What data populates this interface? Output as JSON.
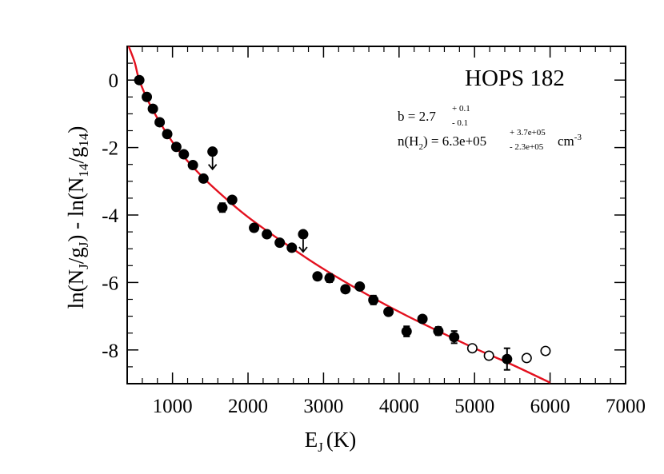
{
  "chart_data": {
    "type": "scatter",
    "title": "HOPS 182",
    "xlabel": "E",
    "xlabel_sub": "J",
    "xlabel_unit": "(K)",
    "ylabel": "ln(N",
    "ylabel_sub1": "J",
    "ylabel_mid": "/g",
    "ylabel_sub2": "J",
    "ylabel_mid2": ") - ln(N",
    "ylabel_sub3": "14",
    "ylabel_mid3": "/g",
    "ylabel_sub4": "14",
    "ylabel_end": ")",
    "xlim": [
      400,
      7000
    ],
    "ylim": [
      -9,
      1
    ],
    "x_ticks": [
      1000,
      2000,
      3000,
      4000,
      5000,
      6000,
      7000
    ],
    "y_ticks": [
      0,
      -2,
      -4,
      -6,
      -8
    ],
    "x_tick_labels": [
      "1000",
      "2000",
      "3000",
      "4000",
      "5000",
      "6000",
      "7000"
    ],
    "y_tick_labels": [
      "0",
      "-2",
      "-4",
      "-6",
      "-8"
    ],
    "grid": false,
    "annotations": {
      "b_prefix": "b = 2.7",
      "b_upper": "+ 0.1",
      "b_lower": "- 0.1",
      "n_prefix": "n(H",
      "n_sub": "2",
      "n_mid": ") =  6.3e+05",
      "n_upper": "+ 3.7e+05",
      "n_lower": "- 2.3e+05",
      "n_unit": "cm",
      "n_unit_sup": "-3"
    },
    "series": [
      {
        "kind": "filled",
        "marker_color": "#000000",
        "points": [
          {
            "x": 560,
            "y": 0.0
          },
          {
            "x": 660,
            "y": -0.5
          },
          {
            "x": 740,
            "y": -0.85
          },
          {
            "x": 830,
            "y": -1.25
          },
          {
            "x": 930,
            "y": -1.6
          },
          {
            "x": 1050,
            "y": -1.98
          },
          {
            "x": 1150,
            "y": -2.2
          },
          {
            "x": 1270,
            "y": -2.52
          },
          {
            "x": 1410,
            "y": -2.92
          },
          {
            "x": 1660,
            "y": -3.78,
            "err": 0.13
          },
          {
            "x": 1790,
            "y": -3.55
          },
          {
            "x": 2080,
            "y": -4.38
          },
          {
            "x": 2250,
            "y": -4.57
          },
          {
            "x": 2420,
            "y": -4.82
          },
          {
            "x": 2580,
            "y": -4.97
          },
          {
            "x": 2920,
            "y": -5.82
          },
          {
            "x": 3080,
            "y": -5.87,
            "err": 0.12
          },
          {
            "x": 3290,
            "y": -6.2
          },
          {
            "x": 3480,
            "y": -6.12
          },
          {
            "x": 3660,
            "y": -6.52,
            "err": 0.13
          },
          {
            "x": 3860,
            "y": -6.87
          },
          {
            "x": 4100,
            "y": -7.45,
            "err": 0.15
          },
          {
            "x": 4310,
            "y": -7.08
          },
          {
            "x": 4520,
            "y": -7.44,
            "err": 0.12
          },
          {
            "x": 4730,
            "y": -7.62,
            "err": 0.18
          },
          {
            "x": 5430,
            "y": -8.27,
            "err": 0.32
          }
        ]
      },
      {
        "kind": "upper-limit",
        "marker_color": "#000000",
        "points": [
          {
            "x": 1530,
            "y": -2.12
          },
          {
            "x": 2730,
            "y": -4.57
          }
        ]
      },
      {
        "kind": "open",
        "marker_color": "#000000",
        "points": [
          {
            "x": 4970,
            "y": -7.95
          },
          {
            "x": 5190,
            "y": -8.17
          },
          {
            "x": 5690,
            "y": -8.24
          },
          {
            "x": 5940,
            "y": -8.03
          }
        ]
      }
    ],
    "fit": {
      "color": "#e3101e",
      "points": [
        {
          "x": 420,
          "y": 1.0
        },
        {
          "x": 500,
          "y": 0.52
        },
        {
          "x": 560,
          "y": 0.0
        },
        {
          "x": 700,
          "y": -0.72
        },
        {
          "x": 900,
          "y": -1.5
        },
        {
          "x": 1100,
          "y": -2.14
        },
        {
          "x": 1400,
          "y": -2.88
        },
        {
          "x": 1700,
          "y": -3.5
        },
        {
          "x": 2000,
          "y": -4.06
        },
        {
          "x": 2500,
          "y": -4.86
        },
        {
          "x": 3000,
          "y": -5.6
        },
        {
          "x": 3500,
          "y": -6.26
        },
        {
          "x": 4000,
          "y": -6.87
        },
        {
          "x": 4500,
          "y": -7.42
        },
        {
          "x": 5000,
          "y": -7.95
        },
        {
          "x": 5500,
          "y": -8.44
        },
        {
          "x": 6000,
          "y": -8.97
        }
      ]
    }
  }
}
